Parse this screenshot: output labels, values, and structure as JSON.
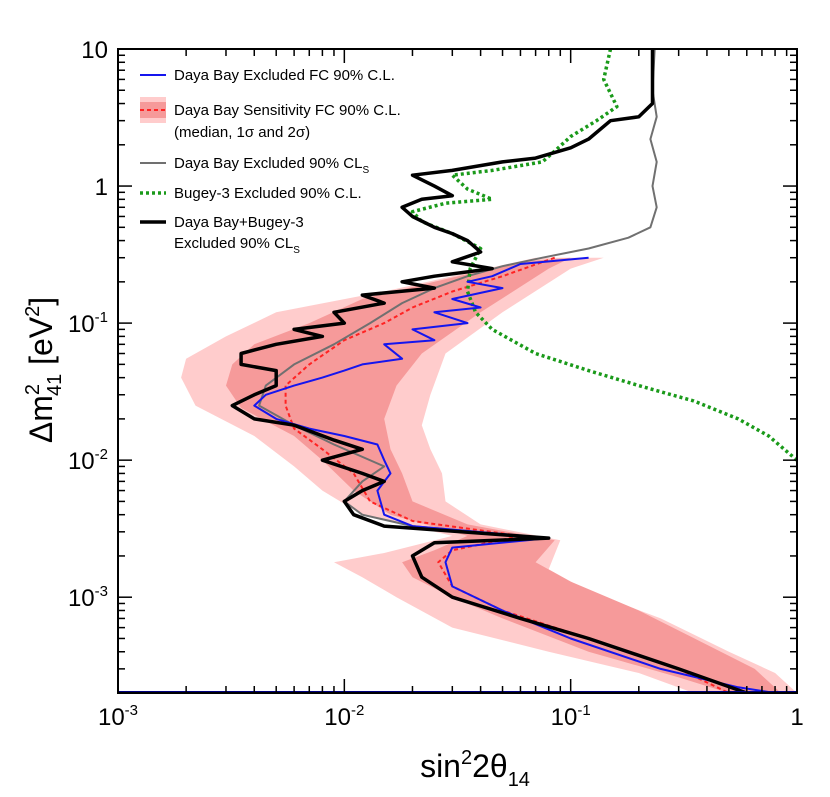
{
  "chart_data": {
    "type": "line",
    "title": "",
    "xlabel": {
      "base": "sin",
      "sup": "2",
      "mid": "2θ",
      "sub": "14"
    },
    "ylabel": {
      "base": "Δm",
      "sup": "2",
      "sub": "41",
      "unit_open": " [eV",
      "unit_sup": "2",
      "unit_close": "]"
    },
    "x_scale": "log",
    "y_scale": "log",
    "xlim": [
      0.001,
      1
    ],
    "ylim": [
      0.0002,
      10
    ],
    "grid": false,
    "legend_position": "top-left",
    "x_ticks": [
      {
        "value": 0.001,
        "base": "10",
        "exp": "-3"
      },
      {
        "value": 0.01,
        "base": "10",
        "exp": "-2"
      },
      {
        "value": 0.1,
        "base": "10",
        "exp": "-1"
      },
      {
        "value": 1,
        "base": "1",
        "exp": ""
      }
    ],
    "y_ticks": [
      {
        "value": 0.001,
        "base": "10",
        "exp": "-3"
      },
      {
        "value": 0.01,
        "base": "10",
        "exp": "-2"
      },
      {
        "value": 0.1,
        "base": "10",
        "exp": "-1"
      },
      {
        "value": 1,
        "base": "1",
        "exp": ""
      },
      {
        "value": 10,
        "base": "10",
        "exp": ""
      }
    ],
    "legend": [
      {
        "key": "db_fc",
        "line1": "Daya Bay Excluded FC 90% C.L.",
        "line1_sub": "",
        "line2": "",
        "line2_sub": ""
      },
      {
        "key": "db_sens",
        "line1": "Daya Bay Sensitivity FC 90% C.L.",
        "line1_sub": "",
        "line2": "(median, 1σ and 2σ)",
        "line2_sub": ""
      },
      {
        "key": "db_cls",
        "line1": "Daya Bay Excluded 90% CL",
        "line1_sub": "S",
        "line2": "",
        "line2_sub": ""
      },
      {
        "key": "bugey",
        "line1": "Bugey-3 Excluded 90% C.L.",
        "line1_sub": "",
        "line2": "",
        "line2_sub": ""
      },
      {
        "key": "combined",
        "line1": "Daya Bay+Bugey-3",
        "line1_sub": "",
        "line2": "Excluded 90% CL",
        "line2_sub": "S"
      }
    ],
    "bands": [
      {
        "name": "2σ sensitivity band",
        "color": "#ffcccc",
        "lower": [
          [
            0.07,
            0.3
          ],
          [
            0.03,
            0.22
          ],
          [
            0.015,
            0.17
          ],
          [
            0.005,
            0.12
          ],
          [
            0.003,
            0.08
          ],
          [
            0.002,
            0.055
          ],
          [
            0.0019,
            0.04
          ],
          [
            0.0022,
            0.025
          ],
          [
            0.004,
            0.015
          ],
          [
            0.006,
            0.009
          ],
          [
            0.008,
            0.006
          ],
          [
            0.012,
            0.004
          ],
          [
            0.03,
            0.0028
          ],
          [
            0.015,
            0.0021
          ],
          [
            0.009,
            0.0018
          ],
          [
            0.012,
            0.0014
          ],
          [
            0.017,
            0.001
          ],
          [
            0.03,
            0.0006
          ],
          [
            0.08,
            0.0004
          ],
          [
            0.2,
            0.00028
          ],
          [
            0.35,
            0.0002
          ]
        ],
        "upper": [
          [
            1,
            0.0002
          ],
          [
            0.8,
            0.00028
          ],
          [
            0.5,
            0.0004
          ],
          [
            0.25,
            0.0007
          ],
          [
            0.12,
            0.0011
          ],
          [
            0.08,
            0.0016
          ],
          [
            0.09,
            0.0026
          ],
          [
            0.04,
            0.0034
          ],
          [
            0.028,
            0.005
          ],
          [
            0.027,
            0.008
          ],
          [
            0.024,
            0.012
          ],
          [
            0.022,
            0.018
          ],
          [
            0.024,
            0.03
          ],
          [
            0.028,
            0.06
          ],
          [
            0.05,
            0.12
          ],
          [
            0.1,
            0.25
          ],
          [
            0.14,
            0.3
          ]
        ]
      },
      {
        "name": "1σ sensitivity band",
        "color": "#f69a9a",
        "lower": [
          [
            0.06,
            0.28
          ],
          [
            0.025,
            0.2
          ],
          [
            0.012,
            0.15
          ],
          [
            0.007,
            0.1
          ],
          [
            0.004,
            0.07
          ],
          [
            0.0032,
            0.05
          ],
          [
            0.003,
            0.035
          ],
          [
            0.0035,
            0.024
          ],
          [
            0.006,
            0.015
          ],
          [
            0.008,
            0.01
          ],
          [
            0.011,
            0.006
          ],
          [
            0.016,
            0.004
          ],
          [
            0.035,
            0.0028
          ],
          [
            0.025,
            0.0022
          ],
          [
            0.018,
            0.0018
          ],
          [
            0.02,
            0.0014
          ],
          [
            0.03,
            0.001
          ],
          [
            0.05,
            0.0007
          ],
          [
            0.12,
            0.0004
          ],
          [
            0.3,
            0.00026
          ],
          [
            0.5,
            0.0002
          ]
        ],
        "upper": [
          [
            0.85,
            0.0002
          ],
          [
            0.65,
            0.0003
          ],
          [
            0.4,
            0.00045
          ],
          [
            0.2,
            0.0008
          ],
          [
            0.1,
            0.0013
          ],
          [
            0.07,
            0.0018
          ],
          [
            0.085,
            0.0026
          ],
          [
            0.035,
            0.0034
          ],
          [
            0.02,
            0.005
          ],
          [
            0.018,
            0.008
          ],
          [
            0.016,
            0.012
          ],
          [
            0.015,
            0.02
          ],
          [
            0.017,
            0.035
          ],
          [
            0.022,
            0.06
          ],
          [
            0.04,
            0.12
          ],
          [
            0.08,
            0.25
          ],
          [
            0.1,
            0.3
          ]
        ]
      }
    ],
    "series": [
      {
        "name": "Daya Bay Sensitivity FC 90% C.L.",
        "key": "db_sens",
        "color": "#ff2222",
        "dash": "4,3",
        "width": 2,
        "points": [
          [
            0.085,
            0.3
          ],
          [
            0.05,
            0.22
          ],
          [
            0.03,
            0.17
          ],
          [
            0.02,
            0.13
          ],
          [
            0.015,
            0.1
          ],
          [
            0.01,
            0.075
          ],
          [
            0.007,
            0.05
          ],
          [
            0.0055,
            0.035
          ],
          [
            0.0055,
            0.025
          ],
          [
            0.006,
            0.017
          ],
          [
            0.008,
            0.012
          ],
          [
            0.011,
            0.008
          ],
          [
            0.013,
            0.005
          ],
          [
            0.02,
            0.0036
          ],
          [
            0.06,
            0.0028
          ],
          [
            0.03,
            0.0022
          ],
          [
            0.026,
            0.0018
          ],
          [
            0.03,
            0.0012
          ],
          [
            0.05,
            0.0008
          ],
          [
            0.12,
            0.0005
          ],
          [
            0.3,
            0.0003
          ],
          [
            0.5,
            0.0002
          ]
        ]
      },
      {
        "name": "Daya Bay Excluded 90% CLs",
        "key": "db_cls",
        "color": "#707070",
        "dash": "",
        "width": 2,
        "points": [
          [
            0.235,
            10
          ],
          [
            0.23,
            5
          ],
          [
            0.24,
            3.2
          ],
          [
            0.225,
            2.2
          ],
          [
            0.24,
            1.5
          ],
          [
            0.23,
            1.0
          ],
          [
            0.24,
            0.7
          ],
          [
            0.225,
            0.5
          ],
          [
            0.18,
            0.42
          ],
          [
            0.12,
            0.35
          ],
          [
            0.075,
            0.3
          ],
          [
            0.05,
            0.26
          ],
          [
            0.035,
            0.22
          ],
          [
            0.025,
            0.18
          ],
          [
            0.018,
            0.14
          ],
          [
            0.013,
            0.1
          ],
          [
            0.009,
            0.07
          ],
          [
            0.006,
            0.05
          ],
          [
            0.0045,
            0.035
          ],
          [
            0.0042,
            0.025
          ],
          [
            0.006,
            0.018
          ],
          [
            0.009,
            0.013
          ],
          [
            0.015,
            0.009
          ],
          [
            0.012,
            0.007
          ],
          [
            0.01,
            0.005
          ],
          [
            0.012,
            0.004
          ],
          [
            0.02,
            0.0033
          ],
          [
            0.08,
            0.0027
          ]
        ]
      },
      {
        "name": "Bugey-3 Excluded 90% C.L.",
        "key": "bugey",
        "color": "#1a9a1a",
        "dash": "3,3",
        "width": 3.5,
        "points": [
          [
            0.15,
            10
          ],
          [
            0.14,
            6
          ],
          [
            0.16,
            3.8
          ],
          [
            0.13,
            3
          ],
          [
            0.1,
            2.3
          ],
          [
            0.085,
            1.8
          ],
          [
            0.075,
            1.5
          ],
          [
            0.045,
            1.3
          ],
          [
            0.03,
            1.2
          ],
          [
            0.035,
            0.95
          ],
          [
            0.045,
            0.8
          ],
          [
            0.028,
            0.75
          ],
          [
            0.02,
            0.65
          ],
          [
            0.022,
            0.55
          ],
          [
            0.03,
            0.45
          ],
          [
            0.04,
            0.35
          ],
          [
            0.036,
            0.25
          ],
          [
            0.035,
            0.17
          ],
          [
            0.038,
            0.12
          ],
          [
            0.045,
            0.09
          ],
          [
            0.07,
            0.06
          ],
          [
            0.12,
            0.045
          ],
          [
            0.2,
            0.035
          ],
          [
            0.35,
            0.027
          ],
          [
            0.55,
            0.02
          ],
          [
            0.75,
            0.015
          ],
          [
            1,
            0.01
          ]
        ]
      },
      {
        "name": "Daya Bay Excluded FC 90% C.L.",
        "key": "db_fc",
        "color": "#1515ee",
        "dash": "",
        "width": 2,
        "points": [
          [
            0.12,
            0.3
          ],
          [
            0.06,
            0.27
          ],
          [
            0.045,
            0.22
          ],
          [
            0.035,
            0.2
          ],
          [
            0.05,
            0.18
          ],
          [
            0.03,
            0.15
          ],
          [
            0.04,
            0.13
          ],
          [
            0.025,
            0.12
          ],
          [
            0.035,
            0.1
          ],
          [
            0.02,
            0.09
          ],
          [
            0.025,
            0.075
          ],
          [
            0.015,
            0.07
          ],
          [
            0.018,
            0.055
          ],
          [
            0.012,
            0.05
          ],
          [
            0.01,
            0.045
          ],
          [
            0.008,
            0.04
          ],
          [
            0.006,
            0.035
          ],
          [
            0.0045,
            0.03
          ],
          [
            0.004,
            0.025
          ],
          [
            0.005,
            0.02
          ],
          [
            0.007,
            0.017
          ],
          [
            0.01,
            0.015
          ],
          [
            0.014,
            0.013
          ],
          [
            0.015,
            0.01
          ],
          [
            0.016,
            0.008
          ],
          [
            0.014,
            0.006
          ],
          [
            0.015,
            0.004
          ],
          [
            0.02,
            0.0033
          ],
          [
            0.08,
            0.0027
          ],
          [
            0.03,
            0.0023
          ],
          [
            0.028,
            0.0018
          ],
          [
            0.03,
            0.0012
          ],
          [
            0.05,
            0.0008
          ],
          [
            0.1,
            0.0005
          ],
          [
            0.25,
            0.0003
          ],
          [
            0.55,
            0.00022
          ],
          [
            0.8,
            0.0002
          ]
        ]
      },
      {
        "name": "Daya Bay+Bugey-3 Excluded 90% CLs",
        "key": "combined",
        "color": "#000000",
        "dash": "",
        "width": 3.5,
        "points": [
          [
            0.23,
            10
          ],
          [
            0.23,
            4
          ],
          [
            0.2,
            3.2
          ],
          [
            0.15,
            3.0
          ],
          [
            0.12,
            2.2
          ],
          [
            0.1,
            1.9
          ],
          [
            0.07,
            1.6
          ],
          [
            0.05,
            1.5
          ],
          [
            0.03,
            1.3
          ],
          [
            0.02,
            1.2
          ],
          [
            0.025,
            1.0
          ],
          [
            0.03,
            0.85
          ],
          [
            0.022,
            0.8
          ],
          [
            0.018,
            0.7
          ],
          [
            0.02,
            0.6
          ],
          [
            0.025,
            0.5
          ],
          [
            0.03,
            0.45
          ],
          [
            0.035,
            0.4
          ],
          [
            0.04,
            0.33
          ],
          [
            0.03,
            0.28
          ],
          [
            0.045,
            0.25
          ],
          [
            0.025,
            0.22
          ],
          [
            0.018,
            0.2
          ],
          [
            0.025,
            0.18
          ],
          [
            0.012,
            0.16
          ],
          [
            0.015,
            0.14
          ],
          [
            0.009,
            0.12
          ],
          [
            0.01,
            0.1
          ],
          [
            0.006,
            0.09
          ],
          [
            0.008,
            0.08
          ],
          [
            0.005,
            0.07
          ],
          [
            0.0035,
            0.06
          ],
          [
            0.0035,
            0.05
          ],
          [
            0.005,
            0.045
          ],
          [
            0.005,
            0.035
          ],
          [
            0.004,
            0.03
          ],
          [
            0.0032,
            0.025
          ],
          [
            0.004,
            0.02
          ],
          [
            0.006,
            0.018
          ],
          [
            0.009,
            0.014
          ],
          [
            0.012,
            0.012
          ],
          [
            0.008,
            0.01
          ],
          [
            0.012,
            0.008
          ],
          [
            0.015,
            0.007
          ],
          [
            0.012,
            0.006
          ],
          [
            0.01,
            0.005
          ],
          [
            0.011,
            0.004
          ],
          [
            0.015,
            0.0033
          ],
          [
            0.08,
            0.0027
          ],
          [
            0.025,
            0.0025
          ],
          [
            0.02,
            0.002
          ],
          [
            0.022,
            0.0014
          ],
          [
            0.03,
            0.001
          ],
          [
            0.06,
            0.0007
          ],
          [
            0.12,
            0.0005
          ],
          [
            0.3,
            0.0003
          ],
          [
            0.6,
            0.0002
          ]
        ]
      }
    ]
  }
}
